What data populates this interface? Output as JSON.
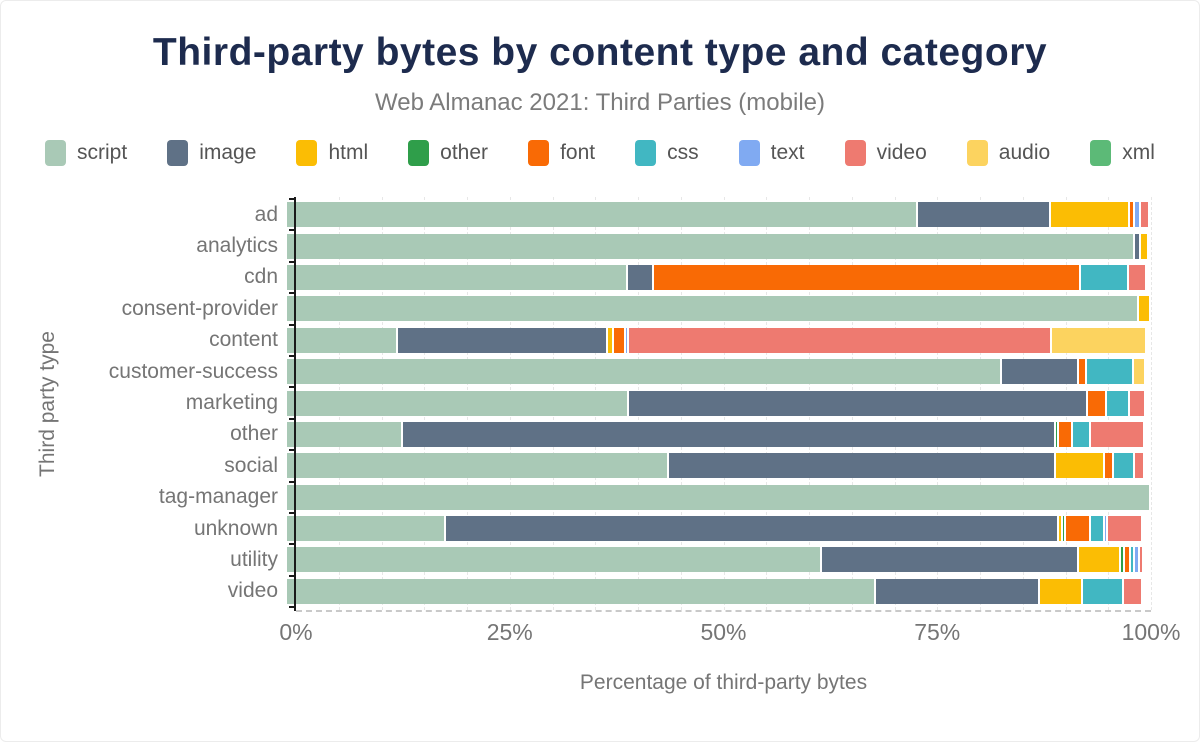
{
  "chart_data": {
    "type": "bar",
    "stacked": true,
    "orientation": "horizontal",
    "title": "Third-party bytes by content type and category",
    "subtitle": "Web Almanac 2021: Third Parties (mobile)",
    "xlabel": "Percentage of third-party bytes",
    "ylabel": "Third party type",
    "xlim": [
      0,
      100
    ],
    "x_ticks": [
      {
        "label": "0%",
        "value": 0
      },
      {
        "label": "25%",
        "value": 25
      },
      {
        "label": "50%",
        "value": 50
      },
      {
        "label": "75%",
        "value": 75
      },
      {
        "label": "100%",
        "value": 100
      }
    ],
    "grid": "minor-vertical-dashed-5pct",
    "legend_position": "top",
    "categories": [
      "ad",
      "analytics",
      "cdn",
      "consent-provider",
      "content",
      "customer-success",
      "marketing",
      "other",
      "social",
      "tag-manager",
      "unknown",
      "utility",
      "video"
    ],
    "series": [
      {
        "name": "script",
        "color": "#a9c9b6",
        "values": [
          73.0,
          98.2,
          39.5,
          98.6,
          12.9,
          82.8,
          39.6,
          13.4,
          44.2,
          100,
          18.4,
          61.9,
          68.2
        ]
      },
      {
        "name": "image",
        "color": "#5f7186",
        "values": [
          15.4,
          0.7,
          3.0,
          0,
          24.3,
          8.9,
          53.1,
          75.6,
          44.8,
          0,
          71.0,
          29.8,
          18.9
        ]
      },
      {
        "name": "html",
        "color": "#fbbd04",
        "values": [
          9.2,
          0.9,
          0,
          1.4,
          0.7,
          0,
          0,
          0,
          5.7,
          0,
          0.4,
          4.8,
          5.0
        ]
      },
      {
        "name": "other",
        "color": "#2f9e4a",
        "values": [
          0,
          0,
          0,
          0,
          0,
          0,
          0,
          0.4,
          0,
          0,
          0.4,
          0.5,
          0
        ]
      },
      {
        "name": "font",
        "color": "#f96a05",
        "values": [
          0.5,
          0,
          49.4,
          0,
          1.3,
          0.9,
          2.2,
          1.6,
          1.0,
          0,
          2.9,
          0.7,
          0
        ]
      },
      {
        "name": "css",
        "color": "#41b7c2",
        "values": [
          0,
          0,
          5.6,
          0,
          0,
          5.4,
          2.7,
          2.1,
          2.5,
          0,
          1.6,
          0.5,
          4.8
        ]
      },
      {
        "name": "text",
        "color": "#80aaf2",
        "values": [
          0.8,
          0,
          0,
          0,
          0.4,
          0,
          0,
          0,
          0,
          0,
          0.3,
          0.5,
          0
        ]
      },
      {
        "name": "video",
        "color": "#ee7a70",
        "values": [
          1.0,
          0,
          2.0,
          0,
          48.9,
          0,
          1.8,
          6.2,
          1.1,
          0,
          4.1,
          0.5,
          2.2
        ]
      },
      {
        "name": "audio",
        "color": "#fcd35f",
        "values": [
          0,
          0,
          0,
          0,
          11.1,
          1.4,
          0,
          0,
          0,
          0,
          0,
          0,
          0
        ]
      },
      {
        "name": "xml",
        "color": "#5cba77",
        "values": [
          0,
          0,
          0,
          0,
          0,
          0,
          0,
          0,
          0,
          0,
          0,
          0,
          0
        ]
      }
    ]
  }
}
